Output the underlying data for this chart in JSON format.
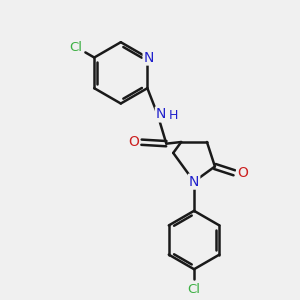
{
  "bg_color": "#f0f0f0",
  "bond_color": "#1a1a1a",
  "N_color": "#2020cc",
  "O_color": "#cc2020",
  "Cl_color": "#3cb043",
  "bond_width": 1.8,
  "figsize": [
    3.0,
    3.0
  ],
  "dpi": 100,
  "xlim": [
    0,
    10
  ],
  "ylim": [
    0,
    10
  ]
}
